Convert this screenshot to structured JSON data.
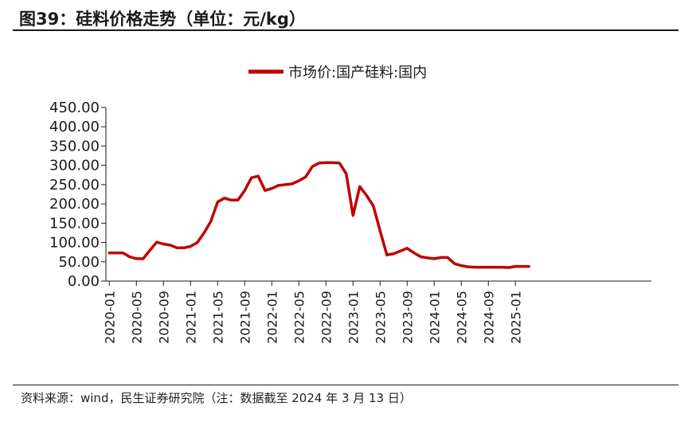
{
  "figure": {
    "title": "图39：硅料价格走势（单位：元/kg）",
    "source": "资料来源：wind，民生证券研究院（注：数据截至 2024 年 3 月 13 日）"
  },
  "chart_data": {
    "type": "line",
    "title": "",
    "xlabel": "",
    "ylabel": "",
    "ylim": [
      0,
      450
    ],
    "yticks": [
      "0.00",
      "50.00",
      "100.00",
      "150.00",
      "200.00",
      "250.00",
      "300.00",
      "350.00",
      "400.00",
      "450.00"
    ],
    "xticks": [
      "2020-01",
      "2020-05",
      "2020-09",
      "2021-01",
      "2021-05",
      "2021-09",
      "2022-01",
      "2022-05",
      "2022-09",
      "2023-01",
      "2023-05",
      "2023-09",
      "2024-01",
      "2024-05",
      "2024-09",
      "2025-01"
    ],
    "legend_position": "top-center",
    "grid": false,
    "line_color": "#C00000",
    "series": [
      {
        "name": "市场价:国产硅料:国内",
        "x": [
          "2020-01",
          "2020-02",
          "2020-03",
          "2020-04",
          "2020-05",
          "2020-06",
          "2020-07",
          "2020-08",
          "2020-09",
          "2020-10",
          "2020-11",
          "2020-12",
          "2021-01",
          "2021-02",
          "2021-03",
          "2021-04",
          "2021-05",
          "2021-06",
          "2021-07",
          "2021-08",
          "2021-09",
          "2021-10",
          "2021-11",
          "2021-12",
          "2022-01",
          "2022-02",
          "2022-03",
          "2022-04",
          "2022-05",
          "2022-06",
          "2022-07",
          "2022-08",
          "2022-09",
          "2022-10",
          "2022-11",
          "2022-12",
          "2023-01",
          "2023-02",
          "2023-03",
          "2023-04",
          "2023-05",
          "2023-06",
          "2023-07",
          "2023-08",
          "2023-09",
          "2023-10",
          "2023-11",
          "2023-12",
          "2024-01",
          "2024-02",
          "2024-03",
          "2024-04",
          "2024-05",
          "2024-06",
          "2024-07",
          "2024-08",
          "2024-09",
          "2024-10",
          "2024-11",
          "2024-12",
          "2025-01",
          "2025-02",
          "2025-03"
        ],
        "values": [
          73,
          73,
          73,
          63,
          58,
          58,
          80,
          101,
          96,
          93,
          86,
          86,
          90,
          100,
          125,
          155,
          205,
          215,
          210,
          210,
          235,
          268,
          272,
          235,
          240,
          248,
          250,
          252,
          260,
          270,
          297,
          306,
          307,
          307,
          306,
          278,
          170,
          245,
          222,
          195,
          130,
          68,
          71,
          78,
          85,
          73,
          63,
          60,
          58,
          61,
          61,
          45,
          40,
          37,
          36,
          36,
          36,
          36,
          36,
          35,
          38,
          38,
          38
        ]
      }
    ]
  }
}
